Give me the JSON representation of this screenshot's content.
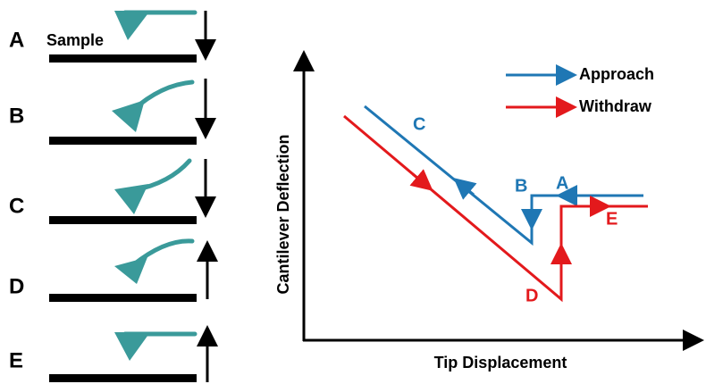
{
  "panels": [
    {
      "label": "A"
    },
    {
      "label": "B"
    },
    {
      "label": "C"
    },
    {
      "label": "D"
    },
    {
      "label": "E"
    }
  ],
  "sample_label": "Sample",
  "legend": [
    {
      "name": "Approach",
      "color": "#1f77b4"
    },
    {
      "name": "Withdraw",
      "color": "#e3191c"
    }
  ],
  "axes": {
    "x_label": "Tip Displacement",
    "y_label": "Cantilever Deflection"
  },
  "curve_labels": [
    {
      "text": "C"
    },
    {
      "text": "B"
    },
    {
      "text": "A"
    },
    {
      "text": "D"
    },
    {
      "text": "E"
    }
  ]
}
